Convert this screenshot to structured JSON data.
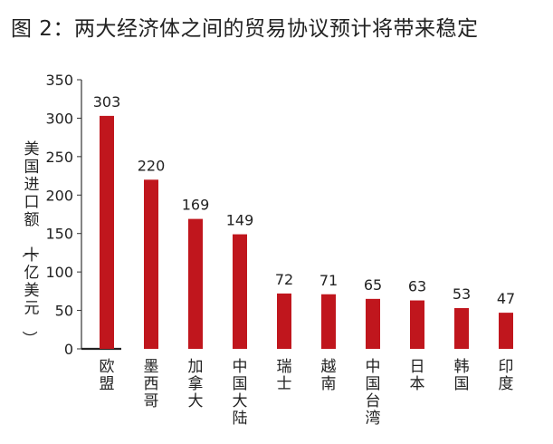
{
  "figure_title": "图 2：两大经济体之间的贸易协议预计将带来稳定",
  "chart_data": {
    "type": "bar",
    "title": "",
    "ylabel": "美国进口额（十亿美元）",
    "ylim": [
      0,
      350
    ],
    "yticks": [
      0,
      50,
      100,
      150,
      200,
      250,
      300,
      350
    ],
    "categories": [
      "欧盟",
      "墨西哥",
      "加拿大",
      "中国大陆",
      "瑞士",
      "越南",
      "中国台湾",
      "日本",
      "韩国",
      "印度"
    ],
    "values": [
      303,
      220,
      169,
      149,
      72,
      71,
      65,
      63,
      53,
      47
    ],
    "data_labels": [
      "303",
      "220",
      "169",
      "149",
      "72",
      "71",
      "65",
      "63",
      "53",
      "47"
    ],
    "bar_color": "#C0161D",
    "grid": false,
    "legend": "none"
  }
}
